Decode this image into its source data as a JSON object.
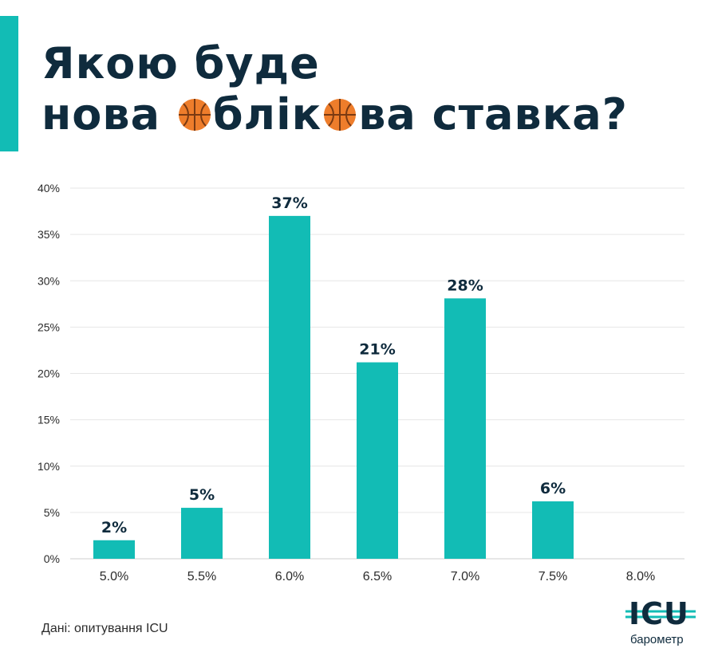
{
  "header": {
    "title_line1": "Якою буде",
    "title_line2_part1": "нова ",
    "title_line2_part2": "блік",
    "title_line2_part3": "ва ставка?",
    "accent_color": "#12bcb5",
    "text_color": "#0f2b3d",
    "title_icon": "basketball-icon"
  },
  "chart_data": {
    "type": "bar",
    "categories": [
      "5.0%",
      "5.5%",
      "6.0%",
      "6.5%",
      "7.0%",
      "7.5%",
      "8.0%"
    ],
    "values": [
      2,
      5.5,
      37,
      21.2,
      28.1,
      6.2,
      0
    ],
    "data_labels": [
      "2%",
      "5%",
      "37%",
      "21%",
      "28%",
      "6%",
      ""
    ],
    "ylim": [
      0,
      40
    ],
    "yticks": [
      0,
      5,
      10,
      15,
      20,
      25,
      30,
      35,
      40
    ],
    "ytick_labels": [
      "0%",
      "5%",
      "10%",
      "15%",
      "20%",
      "25%",
      "30%",
      "35%",
      "40%"
    ],
    "grid": true,
    "bar_color": "#12bcb5",
    "title": "",
    "xlabel": "",
    "ylabel": ""
  },
  "footer": {
    "source": "Дані: опитування ICU",
    "logo_text": "ICU",
    "logo_subtitle": "барометр"
  }
}
